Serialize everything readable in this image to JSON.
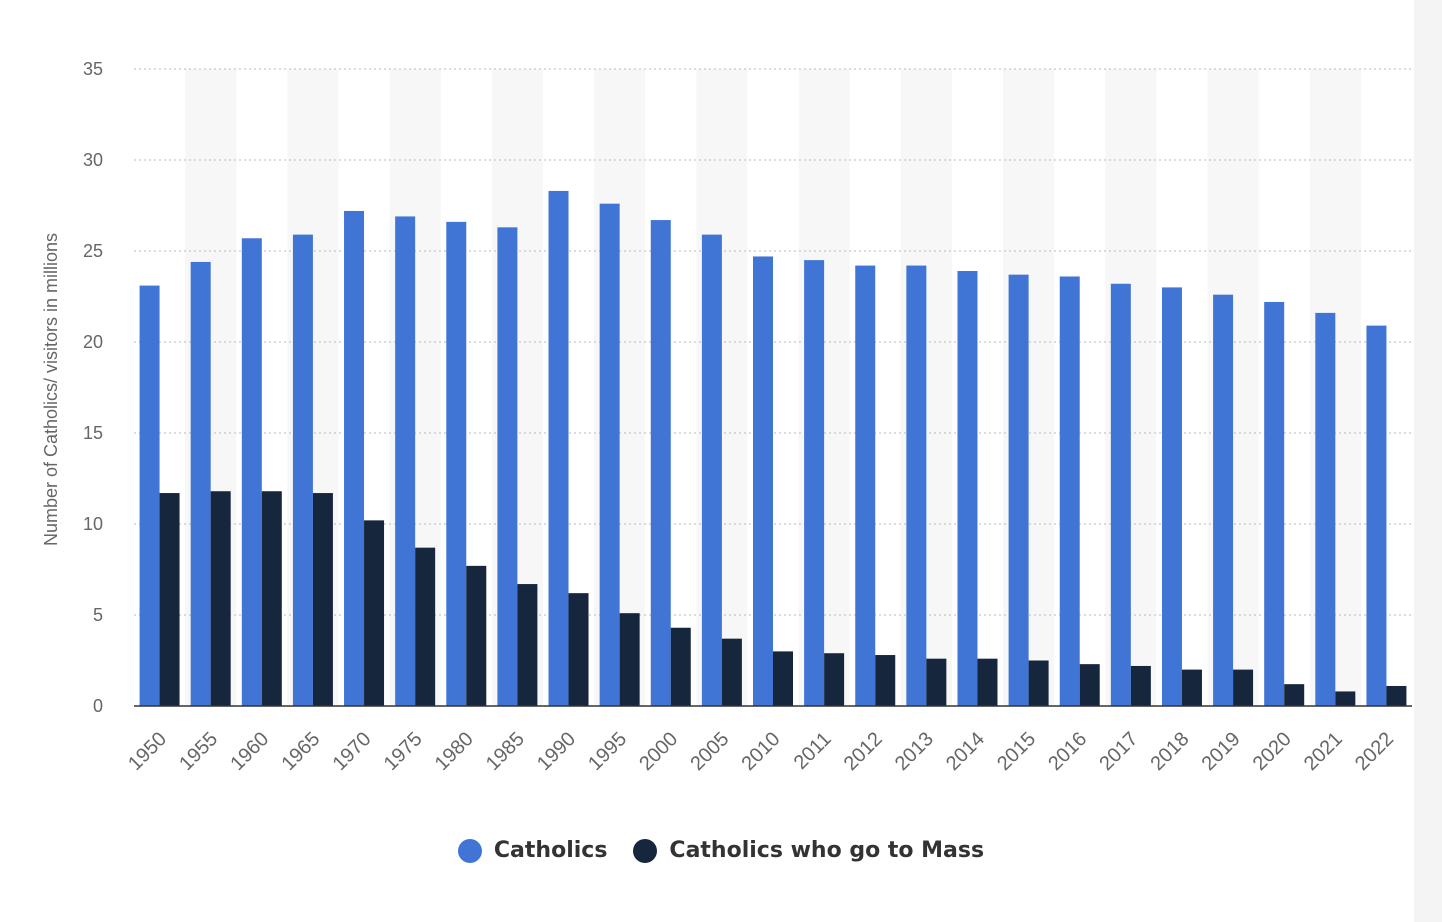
{
  "chart_data": {
    "type": "bar",
    "title": "",
    "xlabel": "",
    "ylabel": "Number of Catholics/ visitors in millions",
    "ylim": [
      0,
      35
    ],
    "yticks": [
      0,
      5,
      10,
      15,
      20,
      25,
      30,
      35
    ],
    "grid": true,
    "legend_position": "bottom",
    "categories": [
      "1950",
      "1955",
      "1960",
      "1965",
      "1970",
      "1975",
      "1980",
      "1985",
      "1990",
      "1995",
      "2000",
      "2005",
      "2010",
      "2011",
      "2012",
      "2013",
      "2014",
      "2015",
      "2016",
      "2017",
      "2018",
      "2019",
      "2020",
      "2021",
      "2022"
    ],
    "series": [
      {
        "name": "Catholics",
        "color": "#4075d6",
        "values": [
          23.1,
          24.4,
          25.7,
          25.9,
          27.2,
          26.9,
          26.6,
          26.3,
          28.3,
          27.6,
          26.7,
          25.9,
          24.7,
          24.5,
          24.2,
          24.2,
          23.9,
          23.7,
          23.6,
          23.2,
          23.0,
          22.6,
          22.2,
          21.6,
          20.9
        ]
      },
      {
        "name": "Catholics who go to Mass",
        "color": "#16263d",
        "values": [
          11.7,
          11.8,
          11.8,
          11.7,
          10.2,
          8.7,
          7.7,
          6.7,
          6.2,
          5.1,
          4.3,
          3.7,
          3.0,
          2.9,
          2.8,
          2.6,
          2.6,
          2.5,
          2.3,
          2.2,
          2.0,
          2.0,
          1.2,
          0.8,
          1.1
        ]
      }
    ]
  }
}
